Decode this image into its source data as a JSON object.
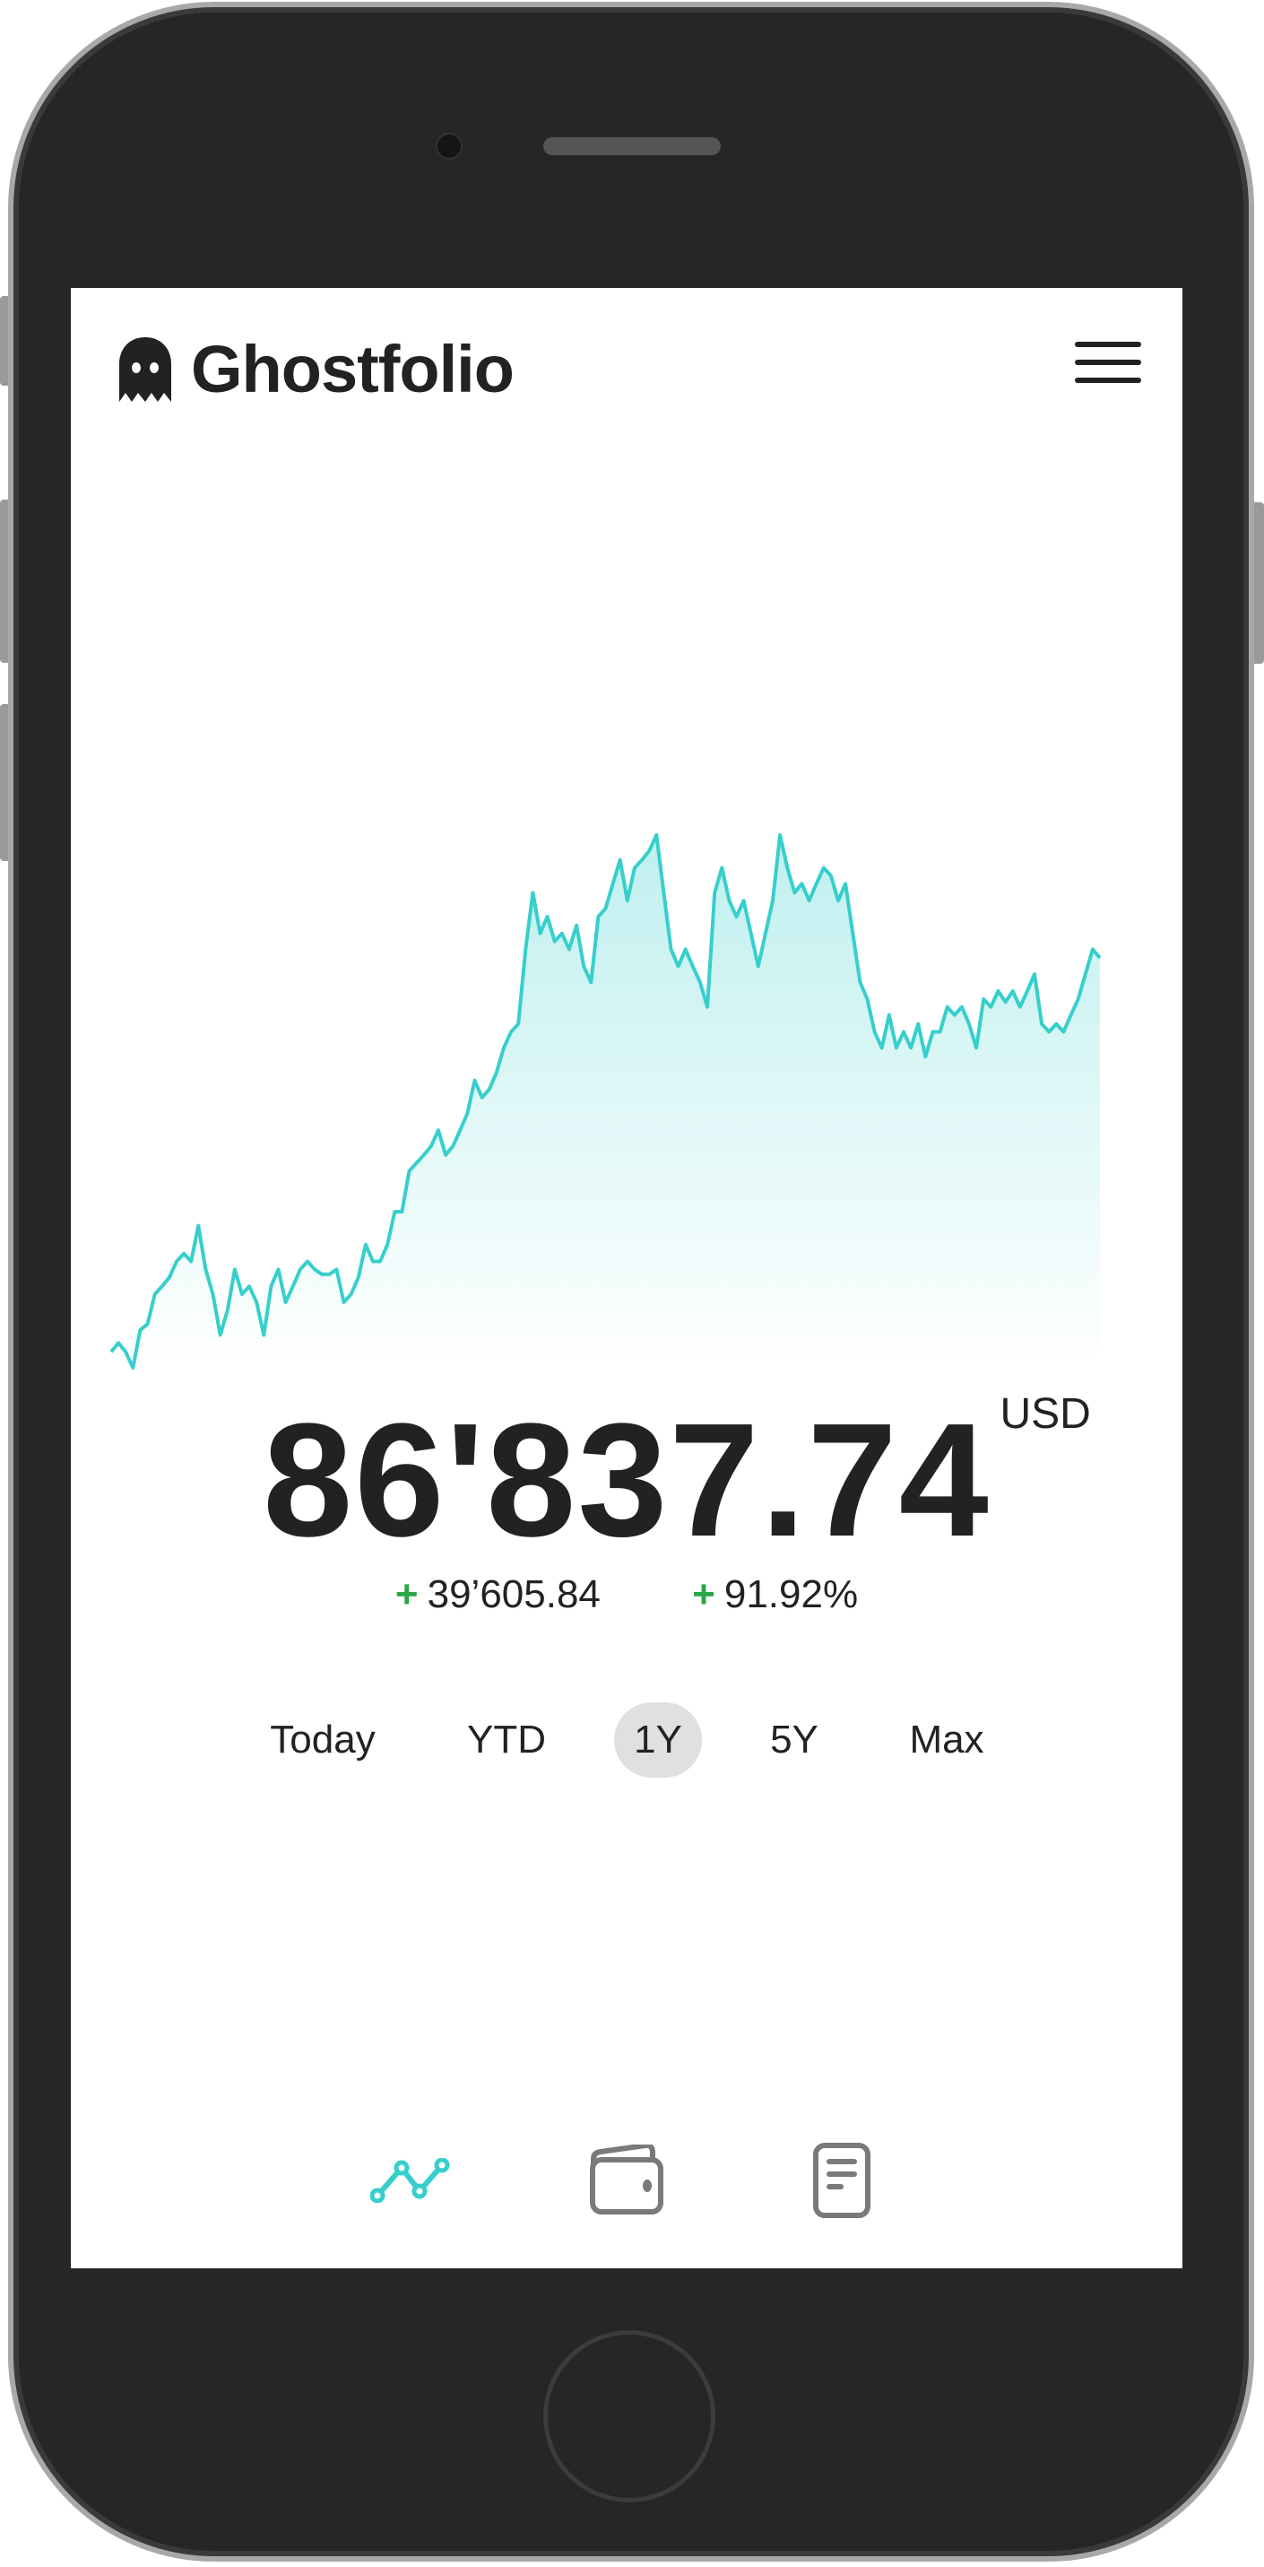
{
  "app": {
    "name": "Ghostfolio",
    "accent_color": "#36cfcc",
    "positive_color": "#28a745"
  },
  "header": {
    "logo_icon": "ghost-icon",
    "menu_icon": "hamburger-menu-icon"
  },
  "portfolio": {
    "value": "86'837.74",
    "currency": "USD",
    "absolute_change_sign": "+",
    "absolute_change": "39’605.84",
    "relative_change_sign": "+",
    "relative_change": "91.92%"
  },
  "ranges": {
    "items": [
      {
        "label": "Today"
      },
      {
        "label": "YTD"
      },
      {
        "label": "1Y"
      },
      {
        "label": "5Y"
      },
      {
        "label": "Max"
      }
    ],
    "selected": "1Y"
  },
  "bottom_nav": {
    "items": [
      {
        "icon": "line-chart-icon",
        "active": true
      },
      {
        "icon": "wallet-icon",
        "active": false
      },
      {
        "icon": "document-icon",
        "active": false
      }
    ]
  },
  "chart_data": {
    "type": "area",
    "title": "",
    "xlabel": "",
    "ylabel": "",
    "grid": false,
    "axes_visible": false,
    "line_color": "#36cfcc",
    "series": [
      {
        "values": [
          47200,
          48100,
          47200,
          45600,
          49400,
          50000,
          53000,
          53800,
          54700,
          56300,
          57100,
          56300,
          59900,
          55500,
          53000,
          48900,
          51400,
          55500,
          53000,
          53800,
          52200,
          48900,
          53800,
          55500,
          52200,
          53800,
          55500,
          56300,
          55500,
          55000,
          55000,
          55500,
          52200,
          53000,
          54700,
          58000,
          56300,
          56300,
          58000,
          61300,
          61300,
          65400,
          66200,
          67000,
          67900,
          69500,
          67000,
          67900,
          69500,
          71200,
          74500,
          72800,
          73600,
          75300,
          77800,
          79400,
          80200,
          87700,
          93400,
          89300,
          91000,
          88500,
          89300,
          87700,
          90100,
          86000,
          84400,
          91000,
          91800,
          94300,
          96700,
          92600,
          95900,
          96700,
          97600,
          99200,
          93400,
          87700,
          86000,
          87700,
          86000,
          84400,
          81900,
          93400,
          95900,
          92600,
          91000,
          92600,
          89300,
          86000,
          89300,
          92600,
          99200,
          95900,
          93400,
          94300,
          92600,
          94300,
          95900,
          95100,
          92600,
          94300,
          89300,
          84400,
          82700,
          79400,
          77800,
          81100,
          77800,
          79400,
          77800,
          80200,
          76900,
          79400,
          79400,
          81900,
          81100,
          81900,
          80200,
          77800,
          82700,
          81900,
          83500,
          82400,
          83500,
          81900,
          83500,
          85200,
          80200,
          79400,
          80200,
          79400,
          81100,
          82700,
          85200,
          87700,
          86838
        ]
      }
    ]
  }
}
